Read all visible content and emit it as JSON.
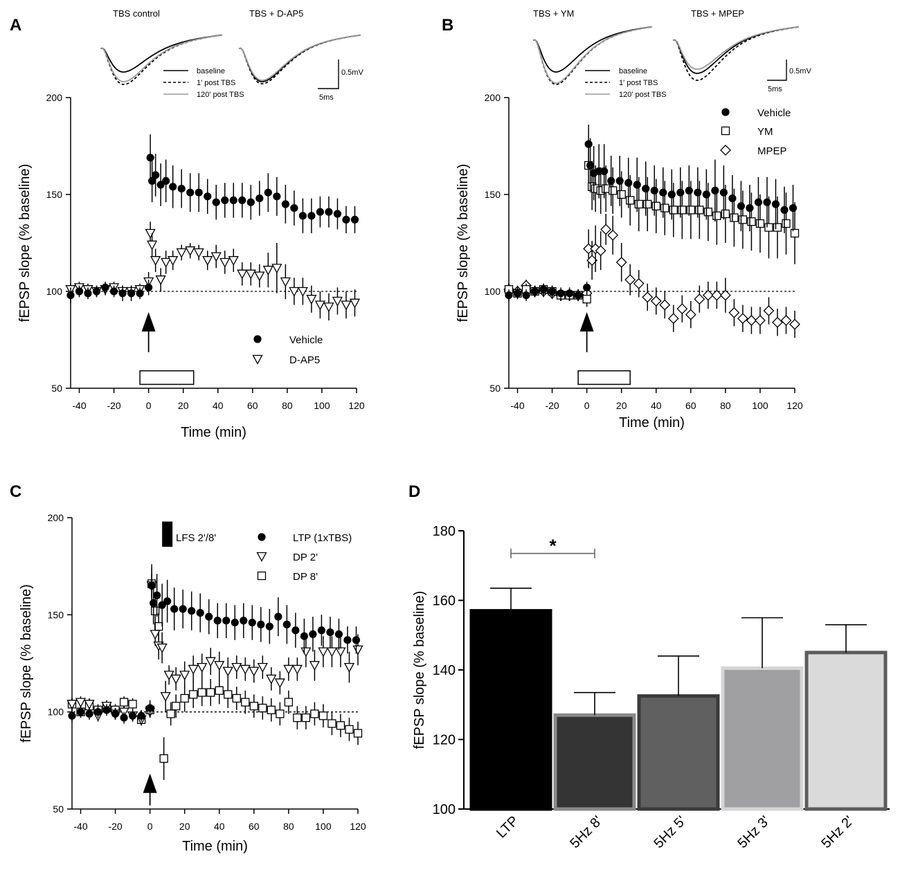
{
  "panel_labels": {
    "a": "A",
    "b": "B",
    "c": "C",
    "d": "D"
  },
  "chart_data": [
    {
      "id": "A",
      "type": "scatter",
      "title": "",
      "xlabel": "Time (min)",
      "ylabel": "fEPSP slope (% baseline)",
      "xlim": [
        -45,
        120
      ],
      "ylim": [
        50,
        200
      ],
      "xticks": [
        -40,
        -20,
        0,
        20,
        40,
        60,
        80,
        100,
        120
      ],
      "yticks": [
        50,
        100,
        150,
        200
      ],
      "baseline": 100,
      "stim_bar": [
        -5,
        26
      ],
      "arrow_x": 0,
      "traces": {
        "titles": [
          "TBS control",
          "TBS + D-AP5"
        ],
        "legend": [
          "baseline",
          "1' post TBS",
          "120' post TBS"
        ],
        "scale_mv": "0.5mV",
        "scale_ms": "5ms"
      },
      "legend_entries": [
        "Vehicle",
        "D-AP5"
      ],
      "series": [
        {
          "name": "Vehicle",
          "marker": "filled-circle",
          "x": [
            -45,
            -40,
            -35,
            -30,
            -25,
            -20,
            -15,
            -10,
            -5,
            0,
            1,
            2,
            4,
            7,
            10,
            14,
            19,
            24,
            29,
            34,
            39,
            44,
            49,
            54,
            59,
            64,
            69,
            74,
            79,
            84,
            89,
            94,
            99,
            104,
            109,
            114,
            119
          ],
          "y": [
            98,
            100,
            99,
            100,
            102,
            100,
            99,
            99,
            99,
            102,
            169,
            157,
            160,
            155,
            157,
            154,
            153,
            151,
            151,
            149,
            146,
            147,
            147,
            147,
            146,
            148,
            151,
            149,
            145,
            143,
            139,
            139,
            141,
            141,
            140,
            137,
            137
          ],
          "err": [
            4,
            3,
            3,
            3,
            3,
            3,
            4,
            4,
            3,
            4,
            12,
            11,
            11,
            11,
            11,
            11,
            10,
            10,
            10,
            9,
            9,
            9,
            9,
            9,
            9,
            9,
            10,
            10,
            10,
            9,
            9,
            9,
            8,
            8,
            8,
            7,
            7
          ]
        },
        {
          "name": "D-AP5",
          "marker": "open-triangle-down",
          "x": [
            -45,
            -40,
            -35,
            -30,
            -25,
            -20,
            -15,
            -10,
            -5,
            0,
            1,
            2,
            4,
            7,
            10,
            14,
            19,
            24,
            29,
            34,
            39,
            44,
            49,
            54,
            59,
            64,
            69,
            74,
            79,
            84,
            89,
            94,
            99,
            104,
            109,
            114,
            119
          ],
          "y": [
            101,
            102,
            101,
            100,
            101,
            102,
            100,
            100,
            101,
            105,
            130,
            124,
            116,
            106,
            115,
            116,
            120,
            121,
            120,
            116,
            118,
            115,
            116,
            109,
            109,
            108,
            111,
            112,
            105,
            100,
            100,
            96,
            93,
            92,
            95,
            93,
            94
          ],
          "err": [
            3,
            3,
            3,
            3,
            3,
            3,
            3,
            3,
            3,
            5,
            6,
            6,
            6,
            6,
            6,
            5,
            4,
            4,
            4,
            5,
            6,
            6,
            6,
            6,
            6,
            6,
            9,
            13,
            9,
            7,
            7,
            7,
            7,
            7,
            7,
            7,
            7
          ]
        }
      ]
    },
    {
      "id": "B",
      "type": "scatter",
      "title": "",
      "xlabel": "Time (min)",
      "ylabel": "fEPSP slope (% baseline)",
      "xlim": [
        -45,
        120
      ],
      "ylim": [
        50,
        200
      ],
      "xticks": [
        -40,
        -20,
        0,
        20,
        40,
        60,
        80,
        100,
        120
      ],
      "yticks": [
        50,
        100,
        150,
        200
      ],
      "baseline": 100,
      "stim_bar": [
        -5,
        25
      ],
      "arrow_x": 0,
      "traces": {
        "titles": [
          "TBS + YM",
          "TBS + MPEP"
        ],
        "legend": [
          "baseline",
          "1' post TBS",
          "120' post TBS"
        ],
        "scale_mv": "0.5mV",
        "scale_ms": "5ms"
      },
      "legend_entries": [
        "Vehicle",
        "YM",
        "MPEP"
      ],
      "series": [
        {
          "name": "Vehicle",
          "marker": "filled-circle",
          "x": [
            -45,
            -40,
            -35,
            -30,
            -25,
            -20,
            -15,
            -10,
            -5,
            0,
            1,
            2,
            4,
            7,
            10,
            14,
            19,
            24,
            29,
            34,
            39,
            44,
            49,
            54,
            59,
            64,
            69,
            74,
            79,
            84,
            89,
            94,
            99,
            104,
            109,
            114,
            119
          ],
          "y": [
            98,
            99,
            98,
            100,
            101,
            100,
            99,
            99,
            98,
            102,
            176,
            165,
            161,
            162,
            162,
            157,
            157,
            156,
            155,
            153,
            152,
            151,
            150,
            151,
            152,
            151,
            150,
            152,
            151,
            148,
            144,
            143,
            146,
            146,
            145,
            142,
            143
          ],
          "err": [
            3,
            3,
            3,
            3,
            3,
            3,
            3,
            3,
            3,
            3,
            10,
            14,
            14,
            14,
            14,
            13,
            13,
            13,
            14,
            14,
            13,
            13,
            13,
            13,
            13,
            13,
            13,
            16,
            14,
            12,
            13,
            12,
            13,
            13,
            13,
            12,
            12
          ]
        },
        {
          "name": "YM",
          "marker": "open-square",
          "x": [
            -45,
            -40,
            -35,
            -30,
            -25,
            -20,
            -15,
            -10,
            -5,
            0,
            1,
            3,
            5,
            8,
            11,
            15,
            20,
            25,
            30,
            35,
            40,
            45,
            50,
            55,
            60,
            65,
            70,
            75,
            80,
            85,
            90,
            95,
            100,
            105,
            110,
            115,
            120
          ],
          "y": [
            101,
            99,
            101,
            100,
            101,
            100,
            98,
            98,
            98,
            96,
            165,
            154,
            153,
            152,
            153,
            152,
            150,
            147,
            145,
            145,
            144,
            143,
            142,
            142,
            142,
            142,
            141,
            139,
            140,
            138,
            137,
            136,
            135,
            133,
            133,
            135,
            130
          ],
          "err": [
            3,
            3,
            3,
            3,
            3,
            3,
            3,
            3,
            3,
            4,
            10,
            12,
            12,
            12,
            12,
            12,
            12,
            13,
            14,
            14,
            14,
            14,
            14,
            15,
            15,
            15,
            15,
            15,
            15,
            15,
            15,
            15,
            15,
            16,
            16,
            16,
            16
          ]
        },
        {
          "name": "MPEP",
          "marker": "open-diamond",
          "x": [
            -45,
            -40,
            -35,
            -30,
            -25,
            -20,
            -15,
            -10,
            -5,
            0,
            1,
            3,
            5,
            8,
            11,
            15,
            20,
            25,
            30,
            35,
            40,
            45,
            50,
            55,
            60,
            65,
            70,
            75,
            80,
            85,
            90,
            95,
            100,
            105,
            110,
            115,
            120
          ],
          "y": [
            101,
            100,
            103,
            100,
            100,
            99,
            98,
            98,
            98,
            99,
            122,
            116,
            122,
            121,
            132,
            129,
            115,
            106,
            104,
            97,
            95,
            93,
            86,
            91,
            88,
            96,
            98,
            98,
            98,
            89,
            86,
            85,
            85,
            90,
            84,
            85,
            83
          ],
          "err": [
            3,
            3,
            3,
            3,
            3,
            3,
            3,
            3,
            3,
            4,
            10,
            10,
            12,
            10,
            8,
            10,
            10,
            8,
            7,
            7,
            7,
            7,
            7,
            7,
            7,
            7,
            7,
            7,
            9,
            7,
            7,
            7,
            7,
            7,
            7,
            7,
            7
          ]
        }
      ]
    },
    {
      "id": "C",
      "type": "scatter",
      "title": "",
      "xlabel": "Time (min)",
      "ylabel": "fEPSP slope (% baseline)",
      "xlim": [
        -45,
        120
      ],
      "ylim": [
        50,
        200
      ],
      "xticks": [
        -40,
        -20,
        0,
        20,
        40,
        60,
        80,
        100,
        120
      ],
      "yticks": [
        50,
        100,
        150,
        200
      ],
      "baseline": 100,
      "arrow_x": 0,
      "lfs_bar_x": [
        7,
        13
      ],
      "lfs_bar_y": [
        185,
        198
      ],
      "lfs_label": "LFS 2'/8'",
      "legend_entries": [
        "LTP (1xTBS)",
        "DP 2'",
        "DP 8'"
      ],
      "series": [
        {
          "name": "LTP (1xTBS)",
          "marker": "filled-circle",
          "x": [
            -45,
            -40,
            -35,
            -30,
            -25,
            -20,
            -15,
            -10,
            -5,
            0,
            1,
            2,
            4,
            7,
            10,
            14,
            19,
            24,
            29,
            34,
            39,
            44,
            49,
            54,
            59,
            64,
            69,
            74,
            79,
            84,
            89,
            94,
            99,
            104,
            109,
            114,
            119
          ],
          "y": [
            98,
            100,
            99,
            100,
            101,
            99,
            97,
            98,
            98,
            102,
            165,
            156,
            160,
            155,
            157,
            153,
            153,
            152,
            151,
            149,
            147,
            147,
            146,
            147,
            146,
            145,
            144,
            149,
            145,
            142,
            139,
            140,
            142,
            141,
            140,
            137,
            137
          ],
          "err": [
            3,
            3,
            3,
            3,
            3,
            3,
            3,
            3,
            3,
            4,
            11,
            11,
            11,
            11,
            11,
            11,
            10,
            10,
            10,
            9,
            9,
            9,
            9,
            9,
            9,
            9,
            9,
            10,
            10,
            9,
            9,
            9,
            8,
            8,
            8,
            7,
            7
          ]
        },
        {
          "name": "DP 2'",
          "marker": "open-triangle-down",
          "x": [
            -45,
            -40,
            -35,
            -30,
            -25,
            -20,
            -15,
            -10,
            -5,
            0,
            1,
            3,
            5,
            7,
            9,
            11,
            15,
            20,
            25,
            30,
            35,
            40,
            45,
            50,
            55,
            60,
            65,
            70,
            75,
            80,
            85,
            90,
            95,
            100,
            105,
            110,
            115,
            120
          ],
          "y": [
            104,
            105,
            104,
            98,
            103,
            99,
            100,
            98,
            96,
            100,
            165,
            140,
            134,
            133,
            108,
            119,
            117,
            119,
            122,
            123,
            126,
            124,
            121,
            123,
            122,
            121,
            123,
            117,
            115,
            122,
            122,
            131,
            124,
            131,
            131,
            131,
            123,
            132
          ],
          "err": [
            3,
            3,
            3,
            3,
            3,
            3,
            3,
            3,
            3,
            3,
            6,
            6,
            7,
            8,
            8,
            5,
            6,
            7,
            7,
            7,
            7,
            7,
            7,
            6,
            6,
            6,
            6,
            6,
            6,
            6,
            6,
            8,
            8,
            8,
            8,
            8,
            8,
            8
          ]
        },
        {
          "name": "DP 8'",
          "marker": "open-square",
          "x": [
            -45,
            -40,
            -35,
            -30,
            -25,
            -20,
            -15,
            -10,
            -5,
            0,
            1,
            3,
            5,
            8,
            12,
            15,
            20,
            25,
            30,
            35,
            40,
            45,
            50,
            55,
            60,
            65,
            70,
            75,
            80,
            85,
            90,
            95,
            100,
            105,
            110,
            115,
            120
          ],
          "y": [
            104,
            100,
            103,
            101,
            102,
            101,
            105,
            104,
            96,
            101,
            166,
            152,
            144,
            76,
            99,
            103,
            107,
            109,
            110,
            110,
            111,
            109,
            107,
            105,
            103,
            102,
            101,
            99,
            105,
            97,
            97,
            99,
            98,
            94,
            93,
            91,
            89
          ],
          "err": [
            3,
            3,
            3,
            3,
            3,
            3,
            3,
            3,
            3,
            4,
            8,
            7,
            7,
            11,
            6,
            6,
            7,
            7,
            7,
            7,
            7,
            7,
            6,
            6,
            6,
            6,
            6,
            6,
            6,
            6,
            6,
            6,
            6,
            6,
            6,
            6,
            6
          ]
        }
      ]
    },
    {
      "id": "D",
      "type": "bar",
      "title": "",
      "xlabel": "",
      "ylabel": "fEPSP slope (% baseline)",
      "ylim": [
        100,
        180
      ],
      "yticks": [
        100,
        120,
        140,
        160,
        180
      ],
      "categories": [
        "LTP",
        "5Hz 8'",
        "5Hz 5'",
        "5Hz 3'",
        "5Hz 2'"
      ],
      "values": [
        157,
        127,
        132.5,
        140.5,
        145
      ],
      "err": [
        6.5,
        6.5,
        11.5,
        14.5,
        8
      ],
      "colors": [
        "#000000",
        "#343434",
        "#606060",
        "#a0a0a3",
        "#dadada"
      ],
      "edge_colors": [
        "#000000",
        "#8a8a8a",
        "#3a3a3a",
        "#d5d5d5",
        "#5c5c5c"
      ],
      "significance": {
        "from": 0,
        "to": 1,
        "label": "*"
      }
    }
  ]
}
